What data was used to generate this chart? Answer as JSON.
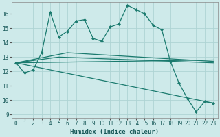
{
  "xlabel": "Humidex (Indice chaleur)",
  "background_color": "#ceeaea",
  "grid_color": "#aed4d4",
  "line_color": "#1a7a6e",
  "xlim": [
    -0.5,
    23.5
  ],
  "ylim": [
    8.8,
    16.8
  ],
  "xticks": [
    0,
    1,
    2,
    3,
    4,
    5,
    6,
    7,
    8,
    9,
    10,
    11,
    12,
    13,
    14,
    15,
    16,
    17,
    18,
    19,
    20,
    21,
    22,
    23
  ],
  "yticks": [
    9,
    10,
    11,
    12,
    13,
    14,
    15,
    16
  ],
  "series1_x": [
    0,
    1,
    2,
    3,
    4,
    5,
    6,
    7,
    8,
    9,
    10,
    11,
    12,
    13,
    14,
    15,
    16,
    17,
    18,
    19,
    20,
    21,
    22,
    23
  ],
  "series1_y": [
    12.6,
    11.9,
    12.1,
    13.3,
    16.1,
    14.4,
    14.8,
    15.5,
    15.6,
    14.3,
    14.1,
    15.1,
    15.3,
    16.6,
    16.3,
    16.0,
    15.2,
    14.9,
    12.7,
    11.2,
    10.1,
    9.2,
    9.9,
    9.8
  ],
  "series2_x": [
    0,
    23
  ],
  "series2_y": [
    12.6,
    12.8
  ],
  "series3_x": [
    0,
    23
  ],
  "series3_y": [
    12.6,
    9.8
  ],
  "series4_x": [
    0,
    6,
    23
  ],
  "series4_y": [
    12.6,
    13.3,
    12.7
  ],
  "series5_x": [
    0,
    5,
    23
  ],
  "series5_y": [
    12.6,
    13.0,
    12.6
  ]
}
